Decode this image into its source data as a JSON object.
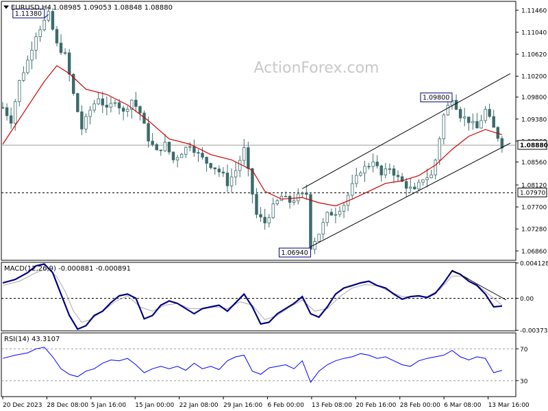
{
  "header": {
    "symbol": "EURUSD,H4",
    "ohlc": "1.08985 1.09053 1.08848 1.08880",
    "macd_label": "MACD(12,26,9) -0.000881 -0.000891",
    "rsi_label": "RSI(14) 43.3107"
  },
  "watermark": "ActionForex.com",
  "colors": {
    "candles": "#3d6b6b",
    "sma": "#cc0000",
    "macd": "#000080",
    "signal": "#aaaaaa",
    "rsi": "#0000ff",
    "channel": "#000000"
  },
  "chart_data": {
    "type": "line",
    "symbol": "EURUSD",
    "timeframe": "H4",
    "price_axis": {
      "ylim": [
        1.0668,
        1.1163
      ],
      "ticks": [
        "1.11460",
        "1.11040",
        "1.10620",
        "1.10200",
        "1.09800",
        "1.09380",
        "1.08960",
        "1.08560",
        "1.08120",
        "1.07700",
        "1.07280",
        "1.06860"
      ]
    },
    "current_price": "1.08880",
    "horizontal_level": "1.07970",
    "annotations": [
      "1.11380",
      "1.09800",
      "1.06940"
    ],
    "x_labels": [
      "20 Dec 2023",
      "28 Dec 08:00",
      "5 Jan 16:00",
      "15 Jan 00:00",
      "22 Jan 08:00",
      "29 Jan 16:00",
      "6 Feb 00:00",
      "13 Feb 08:00",
      "20 Feb 16:00",
      "28 Feb 00:00",
      "6 Mar 08:00",
      "13 Mar 16:00"
    ],
    "price_path": [
      [
        0,
        1.096
      ],
      [
        2,
        1.0935
      ],
      [
        4,
        1.101
      ],
      [
        6,
        1.105
      ],
      [
        8,
        1.11
      ],
      [
        10,
        1.1125
      ],
      [
        11,
        1.1138
      ],
      [
        13,
        1.108
      ],
      [
        15,
        1.106
      ],
      [
        17,
        1.0985
      ],
      [
        19,
        1.092
      ],
      [
        21,
        1.0955
      ],
      [
        23,
        1.098
      ],
      [
        25,
        1.0955
      ],
      [
        27,
        1.0975
      ],
      [
        29,
        1.095
      ],
      [
        31,
        1.0975
      ],
      [
        33,
        1.095
      ],
      [
        35,
        1.09
      ],
      [
        37,
        1.0875
      ],
      [
        39,
        1.089
      ],
      [
        41,
        1.086
      ],
      [
        43,
        1.0875
      ],
      [
        45,
        1.089
      ],
      [
        47,
        1.087
      ],
      [
        49,
        1.0855
      ],
      [
        51,
        1.0845
      ],
      [
        53,
        1.083
      ],
      [
        54,
        1.0815
      ],
      [
        56,
        1.084
      ],
      [
        58,
        1.088
      ],
      [
        60,
        1.0795
      ],
      [
        61,
        1.0755
      ],
      [
        63,
        1.074
      ],
      [
        65,
        1.077
      ],
      [
        67,
        1.079
      ],
      [
        69,
        1.078
      ],
      [
        71,
        1.079
      ],
      [
        73,
        1.0795
      ],
      [
        74,
        1.0694
      ],
      [
        76,
        1.072
      ],
      [
        78,
        1.0755
      ],
      [
        80,
        1.076
      ],
      [
        82,
        1.0775
      ],
      [
        84,
        1.081
      ],
      [
        86,
        1.084
      ],
      [
        88,
        1.085
      ],
      [
        89,
        1.086
      ],
      [
        91,
        1.083
      ],
      [
        93,
        1.0845
      ],
      [
        95,
        1.0825
      ],
      [
        97,
        1.081
      ],
      [
        99,
        1.08
      ],
      [
        101,
        1.0825
      ],
      [
        103,
        1.083
      ],
      [
        104,
        1.086
      ],
      [
        106,
        1.0945
      ],
      [
        108,
        1.098
      ],
      [
        110,
        1.0945
      ],
      [
        112,
        1.0935
      ],
      [
        114,
        1.092
      ],
      [
        116,
        1.0955
      ],
      [
        118,
        1.092
      ],
      [
        120,
        1.0888
      ]
    ],
    "channel": {
      "upper": [
        [
          72,
          1.0805
        ],
        [
          122,
          1.1025
        ]
      ],
      "lower": [
        [
          74,
          1.0694
        ],
        [
          122,
          1.0892
        ]
      ]
    },
    "series": [
      {
        "values": [
          [
            0,
            1.089
          ],
          [
            5,
            1.095
          ],
          [
            10,
            1.101
          ],
          [
            13,
            1.104
          ],
          [
            16,
            1.1025
          ],
          [
            20,
            1.0995
          ],
          [
            25,
            1.0985
          ],
          [
            30,
            1.0965
          ],
          [
            35,
            1.0935
          ],
          [
            40,
            1.09
          ],
          [
            45,
            1.089
          ],
          [
            50,
            1.087
          ],
          [
            55,
            1.086
          ],
          [
            60,
            1.084
          ],
          [
            63,
            1.08
          ],
          [
            67,
            1.0785
          ],
          [
            72,
            1.0788
          ],
          [
            76,
            1.0778
          ],
          [
            80,
            1.0772
          ],
          [
            84,
            1.0785
          ],
          [
            88,
            1.08
          ],
          [
            92,
            1.0815
          ],
          [
            96,
            1.082
          ],
          [
            100,
            1.083
          ],
          [
            104,
            1.085
          ],
          [
            108,
            1.088
          ],
          [
            112,
            1.0905
          ],
          [
            116,
            1.0918
          ],
          [
            120,
            1.0908
          ]
        ]
      },
      {
        "values": [
          [
            0,
            0.0018
          ],
          [
            3,
            0.0022
          ],
          [
            6,
            0.003
          ],
          [
            8,
            0.0038
          ],
          [
            10,
            0.004
          ],
          [
            12,
            0.003
          ],
          [
            14,
            0.0005
          ],
          [
            16,
            -0.002
          ],
          [
            18,
            -0.0036
          ],
          [
            20,
            -0.0032
          ],
          [
            22,
            -0.002
          ],
          [
            24,
            -0.0015
          ],
          [
            26,
            -0.0005
          ],
          [
            28,
            0.0003
          ],
          [
            30,
            0.0005
          ],
          [
            32,
            0.0
          ],
          [
            34,
            -0.0024
          ],
          [
            36,
            -0.002
          ],
          [
            38,
            -0.0008
          ],
          [
            40,
            -0.0003
          ],
          [
            42,
            -0.0006
          ],
          [
            44,
            -0.0012
          ],
          [
            46,
            -0.0018
          ],
          [
            48,
            -0.0012
          ],
          [
            50,
            -0.001
          ],
          [
            52,
            -0.0008
          ],
          [
            54,
            -0.0015
          ],
          [
            56,
            -0.0005
          ],
          [
            58,
            0.0005
          ],
          [
            60,
            -0.001
          ],
          [
            62,
            -0.003
          ],
          [
            64,
            -0.0028
          ],
          [
            66,
            -0.0018
          ],
          [
            68,
            -0.0012
          ],
          [
            70,
            -0.0006
          ],
          [
            72,
            0.0002
          ],
          [
            74,
            -0.0018
          ],
          [
            76,
            -0.0022
          ],
          [
            78,
            -0.001
          ],
          [
            80,
            0.0005
          ],
          [
            82,
            0.0012
          ],
          [
            84,
            0.0015
          ],
          [
            86,
            0.0018
          ],
          [
            88,
            0.002
          ],
          [
            90,
            0.0015
          ],
          [
            92,
            0.0012
          ],
          [
            94,
            0.0005
          ],
          [
            96,
            -0.0001
          ],
          [
            98,
            0.0002
          ],
          [
            100,
            0.0003
          ],
          [
            102,
            0.0001
          ],
          [
            104,
            0.0006
          ],
          [
            106,
            0.0018
          ],
          [
            108,
            0.0032
          ],
          [
            110,
            0.0028
          ],
          [
            112,
            0.002
          ],
          [
            114,
            0.0015
          ],
          [
            116,
            0.0005
          ],
          [
            118,
            -0.001
          ],
          [
            120,
            -0.0009
          ]
        ]
      },
      {
        "values": [
          [
            0,
            0.0015
          ],
          [
            4,
            0.002
          ],
          [
            8,
            0.003
          ],
          [
            11,
            0.0035
          ],
          [
            13,
            0.0025
          ],
          [
            15,
            0.0008
          ],
          [
            17,
            -0.0015
          ],
          [
            19,
            -0.0028
          ],
          [
            21,
            -0.0025
          ],
          [
            24,
            -0.0015
          ],
          [
            27,
            -0.0004
          ],
          [
            30,
            0.0003
          ],
          [
            33,
            -0.001
          ],
          [
            36,
            -0.0015
          ],
          [
            39,
            -0.0008
          ],
          [
            42,
            -0.0006
          ],
          [
            45,
            -0.0012
          ],
          [
            48,
            -0.0012
          ],
          [
            51,
            -0.001
          ],
          [
            54,
            -0.0012
          ],
          [
            57,
            -0.0004
          ],
          [
            60,
            -0.0008
          ],
          [
            63,
            -0.0025
          ],
          [
            66,
            -0.002
          ],
          [
            69,
            -0.001
          ],
          [
            72,
            -0.0002
          ],
          [
            75,
            -0.0015
          ],
          [
            78,
            -0.0012
          ],
          [
            81,
            0.0002
          ],
          [
            84,
            0.0012
          ],
          [
            87,
            0.0016
          ],
          [
            90,
            0.0015
          ],
          [
            93,
            0.0008
          ],
          [
            96,
            0.0002
          ],
          [
            99,
            0.0002
          ],
          [
            102,
            0.0002
          ],
          [
            105,
            0.001
          ],
          [
            108,
            0.0026
          ],
          [
            111,
            0.0026
          ],
          [
            114,
            0.0016
          ],
          [
            117,
            0.0004
          ],
          [
            120,
            -0.0008
          ]
        ]
      },
      {
        "values": [
          [
            0,
            58
          ],
          [
            3,
            62
          ],
          [
            6,
            65
          ],
          [
            8,
            70
          ],
          [
            10,
            72
          ],
          [
            12,
            60
          ],
          [
            14,
            45
          ],
          [
            16,
            38
          ],
          [
            18,
            35
          ],
          [
            20,
            42
          ],
          [
            22,
            45
          ],
          [
            24,
            52
          ],
          [
            26,
            56
          ],
          [
            28,
            55
          ],
          [
            30,
            58
          ],
          [
            32,
            50
          ],
          [
            34,
            40
          ],
          [
            36,
            45
          ],
          [
            38,
            48
          ],
          [
            40,
            45
          ],
          [
            42,
            48
          ],
          [
            44,
            43
          ],
          [
            46,
            52
          ],
          [
            48,
            45
          ],
          [
            50,
            48
          ],
          [
            52,
            44
          ],
          [
            54,
            55
          ],
          [
            56,
            60
          ],
          [
            58,
            62
          ],
          [
            60,
            42
          ],
          [
            62,
            38
          ],
          [
            64,
            46
          ],
          [
            66,
            48
          ],
          [
            68,
            50
          ],
          [
            70,
            45
          ],
          [
            72,
            55
          ],
          [
            74,
            28
          ],
          [
            76,
            42
          ],
          [
            78,
            50
          ],
          [
            80,
            55
          ],
          [
            82,
            58
          ],
          [
            84,
            60
          ],
          [
            86,
            64
          ],
          [
            88,
            62
          ],
          [
            90,
            58
          ],
          [
            92,
            60
          ],
          [
            94,
            55
          ],
          [
            96,
            50
          ],
          [
            98,
            48
          ],
          [
            100,
            55
          ],
          [
            102,
            58
          ],
          [
            104,
            60
          ],
          [
            106,
            62
          ],
          [
            108,
            68
          ],
          [
            110,
            60
          ],
          [
            112,
            56
          ],
          [
            114,
            60
          ],
          [
            116,
            58
          ],
          [
            118,
            40
          ],
          [
            120,
            43
          ]
        ]
      }
    ],
    "macd_axis": {
      "ylim": [
        -0.0038,
        0.0042
      ],
      "ticks": [
        "0.004128",
        "0.00",
        "-0.003737"
      ]
    },
    "rsi_axis": {
      "ylim": [
        10,
        90
      ],
      "ticks": [
        "70",
        "30"
      ]
    },
    "grid": false
  }
}
